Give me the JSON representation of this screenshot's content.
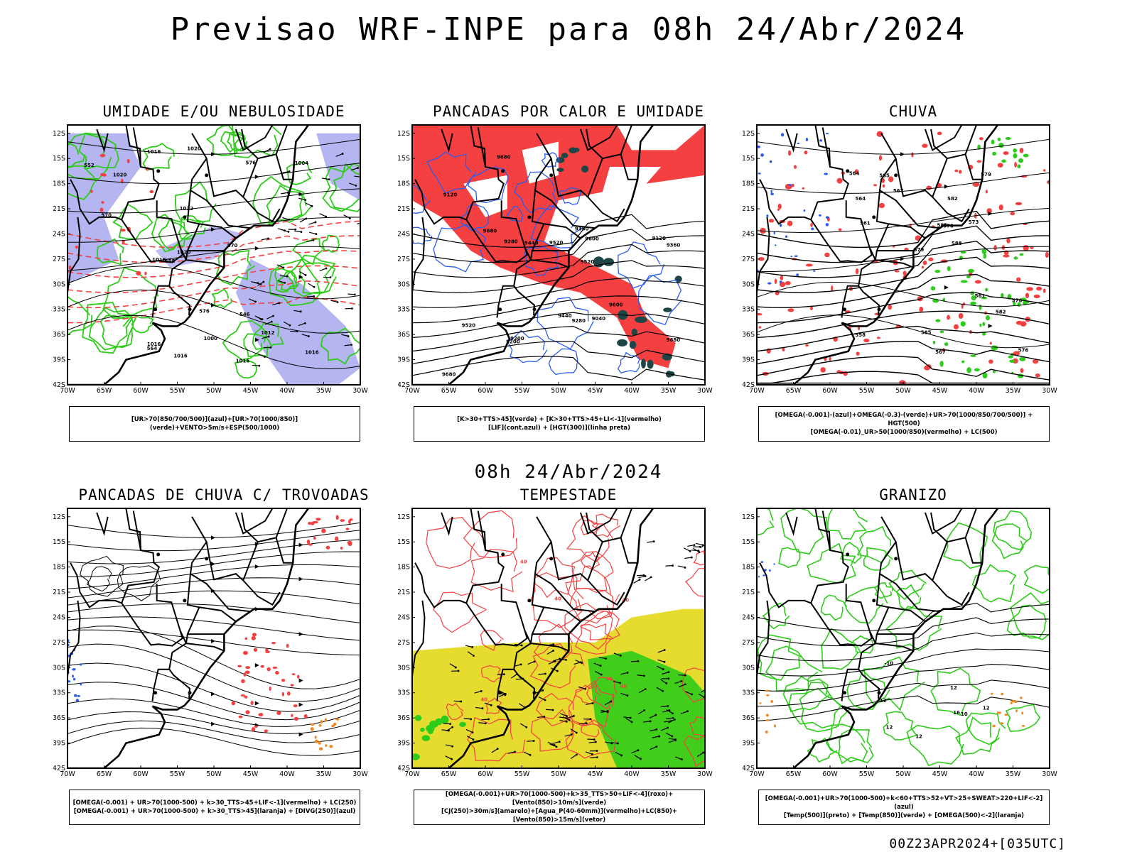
{
  "page": {
    "title": "Previsao WRF-INPE  para 08h 24/Abr/2024",
    "subtitle": "08h 24/Abr/2024",
    "footer": "00Z23APR2024+[035UTC]"
  },
  "axes": {
    "lat_labels": [
      "12S",
      "15S",
      "18S",
      "21S",
      "24S",
      "27S",
      "30S",
      "33S",
      "36S",
      "39S",
      "42S"
    ],
    "lon_labels": [
      "70W",
      "65W",
      "60W",
      "55W",
      "50W",
      "45W",
      "40W",
      "35W",
      "30W"
    ]
  },
  "colors": {
    "red": "#f44040",
    "blue": "#2a5cf0",
    "green": "#2ecc1a",
    "lavender": "#a8a8f0",
    "darkteal": "#1e4646",
    "yellow": "#e6dc30",
    "orange": "#f08a20"
  },
  "panels": [
    {
      "id": "umidade",
      "title": "UMIDADE E/OU NEBULOSIDADE",
      "legend": [
        "[UR>70(850/700/500)](azul)+[UR>70(1000/850)](verde)+VENTO>5m/s+ESP(500/1000)"
      ],
      "contour_labels": [
        "1016",
        "1016",
        "1016",
        "1012",
        "1016",
        "1020",
        "1016",
        "1016",
        "1020",
        "1012",
        "1004",
        "1000",
        "1020",
        "576",
        "576",
        "570",
        "570",
        "564",
        "558",
        "552",
        "546"
      ]
    },
    {
      "id": "pancadas-calor",
      "title": "PANCADAS POR CALOR E UMIDADE",
      "legend": [
        "[K>30+TTS>45](verde) + [K>30+TTS>45+LI<-1](vermelho)",
        "[LIF](cont.azul) + [HGT(300)](linha preta)"
      ],
      "contour_labels": [
        "9680",
        "9680",
        "9680",
        "9680",
        "9600",
        "9600",
        "9520",
        "9520",
        "9440",
        "9440",
        "9360",
        "9360",
        "9280",
        "9200",
        "9280",
        "9200",
        "9120",
        "9040",
        "9120",
        "9520"
      ]
    },
    {
      "id": "chuva",
      "title": "CHUVA",
      "legend": [
        "[OMEGA(-0.001)-(azul)+OMEGA(-0.3)-(verde)+UR>70(1000/850/700/500)] + HGT(500)",
        "[OMEGA(-0.01)_UR>50(1000/850)(vermelho) + LC(500)"
      ],
      "contour_labels": [
        "588",
        "585",
        "585",
        "582",
        "579",
        "576",
        "573",
        "570",
        "567",
        "564",
        "561",
        "558",
        "585",
        "582",
        "579",
        "576",
        "567",
        "564",
        "561"
      ]
    },
    {
      "id": "trovoadas",
      "title": "PANCADAS DE CHUVA C/ TROVOADAS",
      "legend": [
        "[OMEGA(-0.001) + UR>70(1000-500) + k>30_TTS>45+LIF<-1](vermelho) + LC(250)",
        "[OMEGA(-0.001) + UR>70(1000-500) + k>30_TTS>45](laranja) + [DIVG(250)](azul)"
      ],
      "contour_labels": []
    },
    {
      "id": "tempestade",
      "title": "TEMPESTADE",
      "legend": [
        "[OMEGA(-0.001)+UR>70(1000-500)+k>35_TTS>50+LIF<-4](roxo)+[Vento(850)>10m/s](verde)",
        "[CJ(250)>30m/s](amarelo)+[Agua_P(40-60mm)](vermelho)+LC(850)+[Vento(850)>15m/s](vetor)"
      ],
      "contour_labels": [
        "40",
        "40",
        "40",
        "40",
        "40",
        "40"
      ]
    },
    {
      "id": "granizo",
      "title": "GRANIZO",
      "legend": [
        "[OMEGA(-0.001)+UR>70(1000-500)+k<60+TTS>52+VT>25+SWEAT>220+LIF<-2](azul)",
        "[Temp(500)](preto) + [Temp(850)](verde) + [OMEGA(500)<-2](laranja)"
      ],
      "contour_labels": [
        "12",
        "12",
        "12",
        "12",
        "16",
        "-10",
        "10",
        "12"
      ]
    }
  ]
}
